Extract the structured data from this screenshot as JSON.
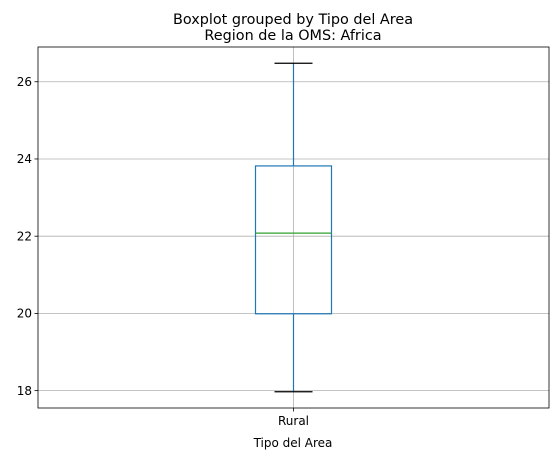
{
  "chart_data": {
    "type": "boxplot",
    "suptitle": "Boxplot grouped by Tipo del Area",
    "title": "Region de la OMS: Africa",
    "xlabel": "Tipo del Area",
    "ylabel": "",
    "categories": [
      "Rural"
    ],
    "boxes": [
      {
        "category": "Rural",
        "whisker_low": 17.97,
        "q1": 19.99,
        "median": 22.08,
        "q3": 23.82,
        "whisker_high": 26.48
      }
    ],
    "ylim": [
      17.55,
      26.9
    ],
    "yticks": [
      18,
      20,
      22,
      24,
      26
    ],
    "ytick_labels": [
      "18",
      "20",
      "22",
      "24",
      "26"
    ],
    "grid": true,
    "colors": {
      "box": "#1f77b4",
      "median": "#2ca02c",
      "whisker_cap": "#000000",
      "grid": "#b0b0b0"
    }
  }
}
